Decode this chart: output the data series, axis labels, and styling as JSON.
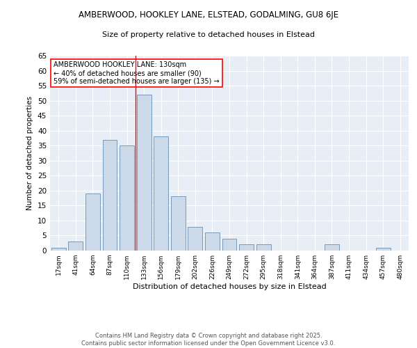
{
  "title1": "AMBERWOOD, HOOKLEY LANE, ELSTEAD, GODALMING, GU8 6JE",
  "title2": "Size of property relative to detached houses in Elstead",
  "xlabel": "Distribution of detached houses by size in Elstead",
  "ylabel": "Number of detached properties",
  "bar_labels": [
    "17sqm",
    "41sqm",
    "64sqm",
    "87sqm",
    "110sqm",
    "133sqm",
    "156sqm",
    "179sqm",
    "202sqm",
    "226sqm",
    "249sqm",
    "272sqm",
    "295sqm",
    "318sqm",
    "341sqm",
    "364sqm",
    "387sqm",
    "411sqm",
    "434sqm",
    "457sqm",
    "480sqm"
  ],
  "bar_values": [
    1,
    3,
    19,
    37,
    35,
    52,
    38,
    18,
    8,
    6,
    4,
    2,
    2,
    0,
    0,
    0,
    2,
    0,
    0,
    1,
    0
  ],
  "bar_color": "#ccd9e8",
  "bar_edge_color": "#7799bb",
  "red_line_x": 4.5,
  "annotation_title": "AMBERWOOD HOOKLEY LANE: 130sqm",
  "annotation_line1": "← 40% of detached houses are smaller (90)",
  "annotation_line2": "59% of semi-detached houses are larger (135) →",
  "ylim": [
    0,
    65
  ],
  "yticks": [
    0,
    5,
    10,
    15,
    20,
    25,
    30,
    35,
    40,
    45,
    50,
    55,
    60,
    65
  ],
  "bg_color": "#e8eef5",
  "footer1": "Contains HM Land Registry data © Crown copyright and database right 2025.",
  "footer2": "Contains public sector information licensed under the Open Government Licence v3.0."
}
